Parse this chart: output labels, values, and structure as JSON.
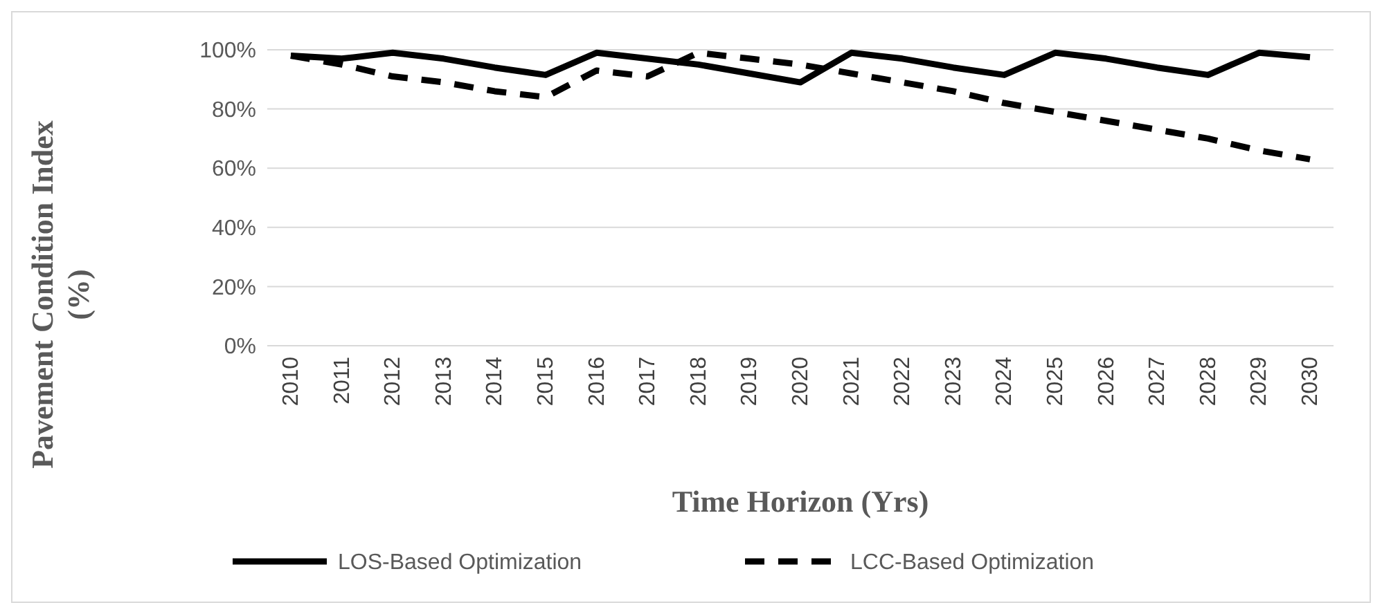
{
  "chart_data": {
    "type": "line",
    "xlabel": "Time Horizon (Yrs)",
    "ylabel": "Pavement Condition Index (%)",
    "categories": [
      "2010",
      "2011",
      "2012",
      "2013",
      "2014",
      "2015",
      "2016",
      "2017",
      "2018",
      "2019",
      "2020",
      "2021",
      "2022",
      "2023",
      "2024",
      "2025",
      "2026",
      "2027",
      "2028",
      "2029",
      "2030"
    ],
    "series": [
      {
        "name": "LOS-Based Optimization",
        "color": "#000000",
        "line_style": "solid",
        "values": [
          98,
          97,
          99,
          97,
          94,
          91.5,
          99,
          97,
          95,
          92,
          89,
          99,
          97,
          94,
          91.5,
          99,
          97,
          94,
          91.5,
          99,
          97.5
        ]
      },
      {
        "name": "LCC-Based Optimization",
        "color": "#000000",
        "line_style": "dashed",
        "values": [
          98,
          95,
          91,
          89,
          86,
          84,
          93,
          91,
          99,
          97,
          95,
          92,
          89,
          86,
          82,
          79,
          76,
          73,
          70,
          66,
          63
        ]
      }
    ],
    "ylim": [
      0,
      100
    ],
    "yticks": [
      {
        "value": 0,
        "label": "0%"
      },
      {
        "value": 20,
        "label": "20%"
      },
      {
        "value": 40,
        "label": "40%"
      },
      {
        "value": 60,
        "label": "60%"
      },
      {
        "value": 80,
        "label": "80%"
      },
      {
        "value": 100,
        "label": "100%"
      }
    ],
    "grid": "y",
    "legend": "bottom",
    "marker": "none"
  }
}
